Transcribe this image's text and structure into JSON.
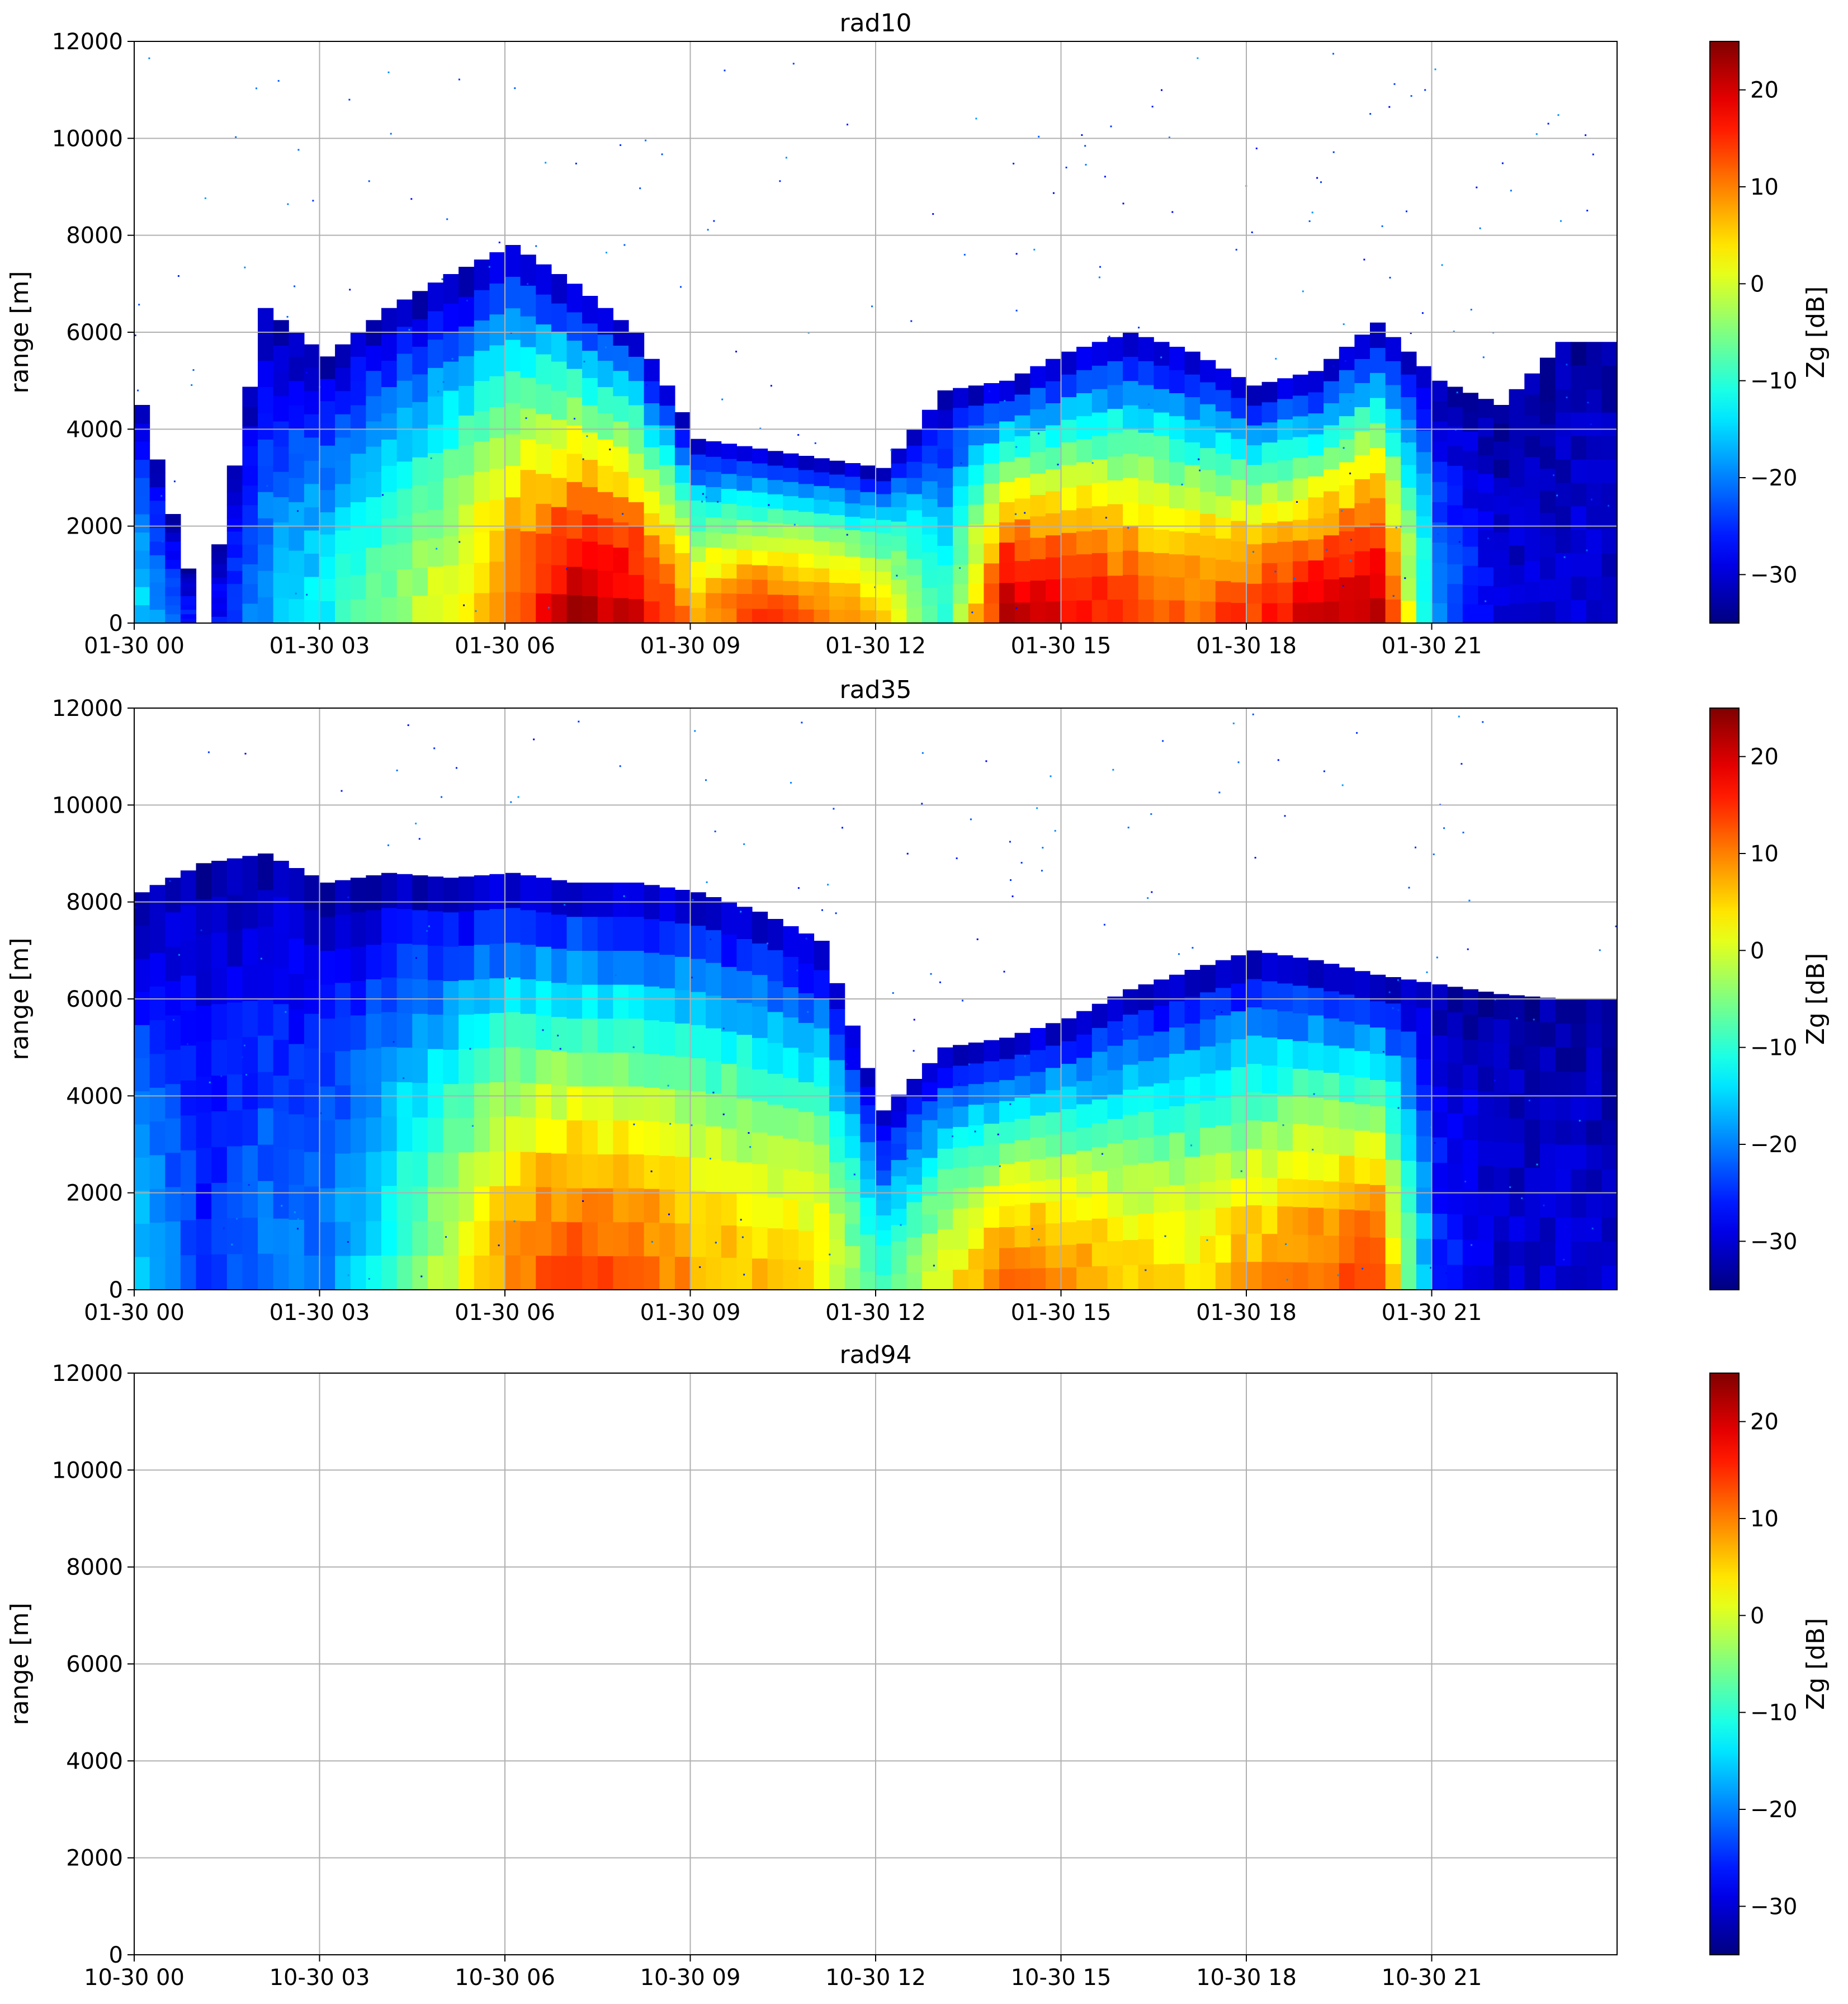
{
  "chart_data": [
    {
      "type": "heatmap",
      "title": "rad10",
      "xlabel": "",
      "ylabel": "range [m]",
      "xlim_hours": [
        0,
        24
      ],
      "ylim": [
        0,
        12000
      ],
      "x_tick_labels": [
        "01-30 00",
        "01-30 03",
        "01-30 06",
        "01-30 09",
        "01-30 12",
        "01-30 15",
        "01-30 18",
        "01-30 21"
      ],
      "y_tick_labels": [
        "0",
        "2000",
        "4000",
        "6000",
        "8000",
        "10000",
        "12000"
      ],
      "grid": true,
      "colorbar": {
        "label": "Zg [dB]",
        "range": [
          -35,
          25
        ],
        "tick_labels": [
          "−30",
          "−20",
          "−10",
          "0",
          "10",
          "20"
        ],
        "colormap": "jet"
      },
      "has_data": true,
      "profile_note": "approximate echo-top and dominant reflectivity by hour",
      "echo_top_by_hour_m": [
        4500,
        0,
        6500,
        5500,
        6500,
        7200,
        7800,
        7000,
        6000,
        3800,
        3600,
        3400,
        3200,
        4800,
        5000,
        5600,
        6000,
        5600,
        4900,
        5200,
        6200,
        5000,
        4500,
        5800
      ],
      "peak_zg_by_hour_db": [
        -15,
        -30,
        -18,
        -12,
        -5,
        2,
        12,
        22,
        20,
        8,
        14,
        12,
        5,
        -10,
        22,
        18,
        14,
        12,
        15,
        20,
        22,
        -20,
        -30,
        -30
      ]
    },
    {
      "type": "heatmap",
      "title": "rad35",
      "xlabel": "",
      "ylabel": "range [m]",
      "xlim_hours": [
        0,
        24
      ],
      "ylim": [
        0,
        12000
      ],
      "x_tick_labels": [
        "01-30 00",
        "01-30 03",
        "01-30 06",
        "01-30 09",
        "01-30 12",
        "01-30 15",
        "01-30 18",
        "01-30 21"
      ],
      "y_tick_labels": [
        "0",
        "2000",
        "4000",
        "6000",
        "8000",
        "10000",
        "12000"
      ],
      "grid": true,
      "colorbar": {
        "label": "Zg [dB]",
        "range": [
          -35,
          25
        ],
        "tick_labels": [
          "−30",
          "−20",
          "−10",
          "0",
          "10",
          "20"
        ],
        "colormap": "jet"
      },
      "has_data": true,
      "profile_note": "approximate echo-top and dominant reflectivity by hour",
      "echo_top_by_hour_m": [
        8200,
        8800,
        9000,
        8400,
        8600,
        8500,
        8600,
        8400,
        8400,
        8200,
        7800,
        7200,
        3700,
        5000,
        5200,
        5600,
        6200,
        6600,
        7000,
        6800,
        6500,
        6300,
        6100,
        6000
      ],
      "peak_zg_by_hour_db": [
        -15,
        -25,
        -20,
        -20,
        -10,
        0,
        10,
        14,
        12,
        8,
        6,
        4,
        -10,
        2,
        12,
        10,
        6,
        4,
        8,
        12,
        14,
        -25,
        -30,
        -30
      ]
    },
    {
      "type": "heatmap",
      "title": "rad94",
      "xlabel": "",
      "ylabel": "range [m]",
      "xlim_hours": [
        0,
        24
      ],
      "ylim": [
        0,
        12000
      ],
      "x_tick_labels": [
        "10-30 00",
        "10-30 03",
        "10-30 06",
        "10-30 09",
        "10-30 12",
        "10-30 15",
        "10-30 18",
        "10-30 21"
      ],
      "y_tick_labels": [
        "0",
        "2000",
        "4000",
        "6000",
        "8000",
        "10000",
        "12000"
      ],
      "grid": true,
      "colorbar": {
        "label": "Zg [dB]",
        "range": [
          -35,
          25
        ],
        "tick_labels": [
          "−30",
          "−20",
          "−10",
          "0",
          "10",
          "20"
        ],
        "colormap": "jet"
      },
      "has_data": false,
      "echo_top_by_hour_m": [],
      "peak_zg_by_hour_db": []
    }
  ]
}
